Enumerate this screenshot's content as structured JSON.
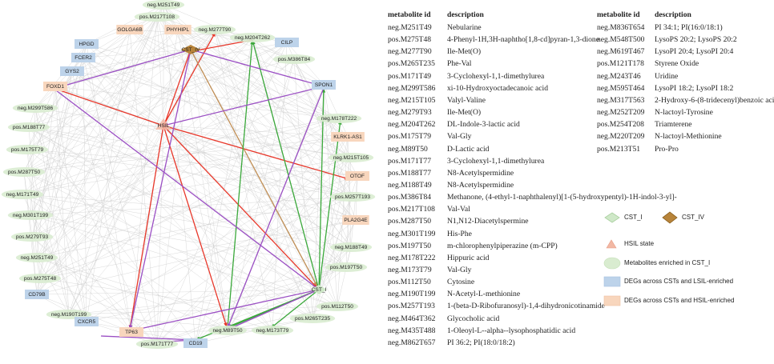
{
  "network": {
    "hubs": [
      {
        "id": "CST_IV",
        "label": "CST_IV",
        "type": "cst_iv"
      },
      {
        "id": "HSIL",
        "label": "HSIL",
        "type": "state"
      },
      {
        "id": "CST_I",
        "label": "CST_I",
        "type": "cst_i"
      }
    ],
    "nodes": [
      {
        "label": "pos.M217T108",
        "type": "metab"
      },
      {
        "label": "PHYHIPL",
        "type": "hsil"
      },
      {
        "label": "neg.M277T90",
        "type": "metab"
      },
      {
        "label": "GOLGA6B",
        "type": "hsil"
      },
      {
        "label": "neg.M251T49",
        "type": "metab"
      },
      {
        "label": "HPGD",
        "type": "lsil"
      },
      {
        "label": "neg.M204T262",
        "type": "metab"
      },
      {
        "label": "CILP",
        "type": "lsil"
      },
      {
        "label": "FCER2",
        "type": "lsil"
      },
      {
        "label": "pos.M386T84",
        "type": "metab"
      },
      {
        "label": "GYS2",
        "type": "lsil"
      },
      {
        "label": "SPON1",
        "type": "lsil"
      },
      {
        "label": "FOXD1",
        "type": "hsil"
      },
      {
        "label": "neg.M299T586",
        "type": "metab"
      },
      {
        "label": "pos.M188T77",
        "type": "metab"
      },
      {
        "label": "neg.M178T222",
        "type": "metab"
      },
      {
        "label": "KLRK1-AS1",
        "type": "hsil"
      },
      {
        "label": "pos.M175T79",
        "type": "metab"
      },
      {
        "label": "neg.M215T105",
        "type": "metab"
      },
      {
        "label": "OTOF",
        "type": "hsil"
      },
      {
        "label": "pos.M287T50",
        "type": "metab"
      },
      {
        "label": "neg.M171T49",
        "type": "metab"
      },
      {
        "label": "pos.M257T193",
        "type": "metab"
      },
      {
        "label": "neg.M301T199",
        "type": "metab"
      },
      {
        "label": "PLA2G4E",
        "type": "hsil"
      },
      {
        "label": "pos.M279T93",
        "type": "metab"
      },
      {
        "label": "neg.M188T49",
        "type": "metab"
      },
      {
        "label": "neg.M251T49",
        "type": "metab"
      },
      {
        "label": "pos.M197T50",
        "type": "metab"
      },
      {
        "label": "pos.M275T48",
        "type": "metab"
      },
      {
        "label": "CD79B",
        "type": "lsil"
      },
      {
        "label": "pos.M112T50",
        "type": "metab"
      },
      {
        "label": "neg.M190T199",
        "type": "metab"
      },
      {
        "label": "CXCR5",
        "type": "lsil"
      },
      {
        "label": "pos.M265T235",
        "type": "metab"
      },
      {
        "label": "TP63",
        "type": "hsil"
      },
      {
        "label": "neg.M89T50",
        "type": "metab"
      },
      {
        "label": "neg.M173T79",
        "type": "metab"
      },
      {
        "label": "pos.M171T77",
        "type": "metab"
      },
      {
        "label": "CD19",
        "type": "lsil"
      }
    ]
  },
  "table1": {
    "headers": [
      "metabolite id",
      "description"
    ],
    "rows": [
      [
        "neg.M251T49",
        "Nebularine"
      ],
      [
        "pos.M275T48",
        "4-Phenyl-1H,3H-naphtho[1,8-cd]pyran-1,3-dione"
      ],
      [
        "neg.M277T90",
        "Ile-Met(O)"
      ],
      [
        "pos.M265T235",
        "Phe-Val"
      ],
      [
        "pos.M171T49",
        "3-Cyclohexyl-1,1-dimethylurea"
      ],
      [
        "neg.M299T586",
        "xi-10-Hydroxyoctadecanoic acid"
      ],
      [
        "neg.M215T105",
        "Valyl-Valine"
      ],
      [
        "neg.M279T93",
        "Ile-Met(O)"
      ],
      [
        "neg.M204T262",
        "DL-Indole-3-lactic acid"
      ],
      [
        "pos.M175T79",
        "Val-Gly"
      ],
      [
        "neg.M89T50",
        "D-Lactic acid"
      ],
      [
        "pos.M171T77",
        "3-Cyclohexyl-1,1-dimethylurea"
      ],
      [
        "pos.M188T77",
        "N8-Acetylspermidine"
      ],
      [
        "neg.M188T49",
        "N8-Acetylspermidine"
      ],
      [
        "pos.M386T84",
        "Methanone, (4-ethyl-1-naphthalenyl)[1-(5-hydroxypentyl)-1H-indol-3-yl]-"
      ],
      [
        "pos.M217T108",
        "Val-Val"
      ],
      [
        "pos.M287T50",
        "N1,N12-Diacetylspermine"
      ],
      [
        "neg.M301T199",
        "His-Phe"
      ],
      [
        "pos.M197T50",
        "m-chlorophenylpiperazine (m-CPP)"
      ],
      [
        "neg.M178T222",
        "Hippuric acid"
      ],
      [
        "neg.M173T79",
        "Val-Gly"
      ],
      [
        "pos.M112T50",
        "Cytosine"
      ],
      [
        "neg.M190T199",
        "N-Acetyl-L-methionine"
      ],
      [
        "pos.M257T193",
        "1-(beta-D-Ribofuranosyl)-1,4-dihydronicotinamide"
      ],
      [
        "neg.M464T362",
        "Glycocholic acid"
      ],
      [
        "neg.M435T488",
        "1-Oleoyl-L--alpha--lysophosphatidic acid"
      ],
      [
        "neg.M862T657",
        "PI 36:2; PI(18:0/18:2)"
      ]
    ]
  },
  "table2": {
    "headers": [
      "metabolite id",
      "description"
    ],
    "rows": [
      [
        "neg.M836T654",
        "PI 34:1; PI(16:0/18:1)"
      ],
      [
        "neg.M548T500",
        "LysoPS 20:2; LysoPS 20:2"
      ],
      [
        "neg.M619T467",
        "LysoPI 20:4; LysoPI 20:4"
      ],
      [
        "pos.M121T178",
        "Styrene Oxide"
      ],
      [
        "neg.M243T46",
        "Uridine"
      ],
      [
        "neg.M595T464",
        "LysoPI 18:2; LysoPI 18:2"
      ],
      [
        "neg.M317T563",
        "2-Hydroxy-6-(8-tridecenyl)benzoic acid"
      ],
      [
        "neg.M252T209",
        "N-lactoyl-Tyrosine"
      ],
      [
        "pos.M254T208",
        "Triamterene"
      ],
      [
        "neg.M220T209",
        "N-lactoyl-Methionine"
      ],
      [
        "pos.M213T51",
        "Pro-Pro"
      ]
    ]
  },
  "legend": {
    "cst_i": "CST_I",
    "cst_iv": "CST_IV",
    "hsil_state": "HSIL state",
    "metabolites": "Metabolites enriched in CST_I",
    "degs_lsil": "DEGs across CSTs and LSIL-enriched",
    "degs_hsil": "DEGs across CSTs and HSIL-enriched"
  },
  "colors": {
    "metab_fill": "#d9ecd0",
    "lsil_fill": "#bdd3ea",
    "hsil_fill": "#f8d6bd",
    "cst_i_fill": "#cfe8c8",
    "cst_iv_fill": "#b8843a",
    "hsil_tri": "#f2b8a4",
    "edge_gray": "#c9c9c9",
    "edge_red": "#e8372a",
    "edge_green": "#3aa83a",
    "edge_purple": "#9b4fc4"
  }
}
